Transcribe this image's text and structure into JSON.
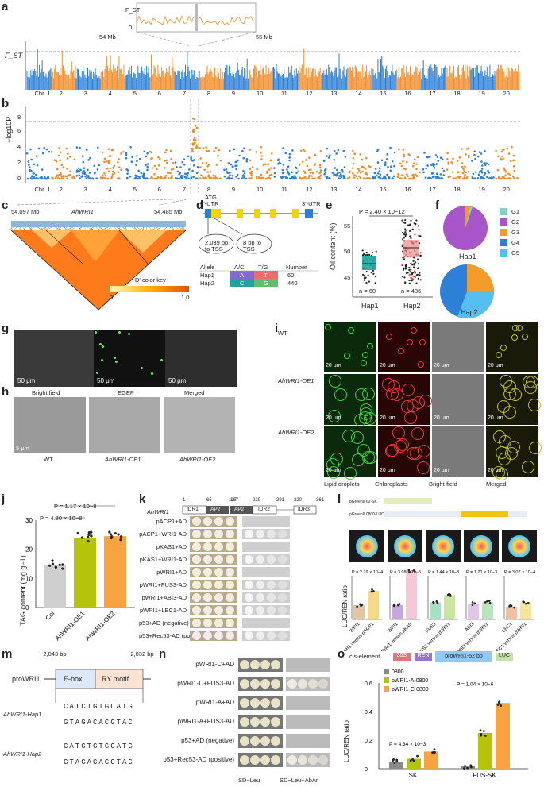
{
  "colors": {
    "orange": "#f28c28",
    "blue": "#2b7fd8",
    "teal": "#20a39e",
    "pink": "#e88a8a",
    "grey": "#bdbdbd",
    "lime": "#b5c40a",
    "lightorange": "#f6a340"
  },
  "panels": [
    "a",
    "b",
    "c",
    "d",
    "e",
    "f",
    "g",
    "h",
    "i",
    "j",
    "k",
    "l",
    "m",
    "n",
    "o"
  ],
  "a": {
    "ylabel": "F_ST",
    "zoom_start": "54 Mb",
    "zoom_end": "55 Mb",
    "zoom_ylabel": "F_ST",
    "zoom_ticks": [
      "0.2",
      "0"
    ],
    "chrs": [
      "Chr. 1",
      "2",
      "3",
      "4",
      "5",
      "6",
      "7",
      "8",
      "9",
      "10",
      "11",
      "12",
      "13",
      "14",
      "15",
      "16",
      "17",
      "18",
      "19",
      "20"
    ]
  },
  "b": {
    "ylabel": "−log10P",
    "yticks": [
      "8",
      "6",
      "4",
      "2",
      "0"
    ]
  },
  "c": {
    "left_pos": "54.097 Mb",
    "gene": "AhWRI1",
    "right_pos": "54.485 Mb",
    "key_title": "D′ color key",
    "key_min": "0",
    "key_max": "1.0"
  },
  "d": {
    "utr5": "5′-UTR",
    "utr3": "3′-UTR",
    "atg": "ATG",
    "tss1": "2,039 bp to TSS",
    "tss2": "8 bp to TSS",
    "table_header": [
      "Allele",
      "A/C",
      "T/G",
      "Number"
    ],
    "rows": [
      [
        "Hap1",
        "A",
        "T",
        "60"
      ],
      [
        "Hap2",
        "C",
        "G",
        "440"
      ]
    ]
  },
  "e": {
    "ylabel": "Oil content (%)",
    "pval": "P = 2.40 × 10−12",
    "yticks": [
      "55",
      "50",
      "45"
    ],
    "groups": [
      "Hap1",
      "Hap2"
    ],
    "ns": [
      "n = 60",
      "n = 436"
    ]
  },
  "f": {
    "legend": [
      "G1",
      "G2",
      "G3",
      "G4",
      "G5"
    ],
    "legend_colors": [
      "#7fd1c4",
      "#a855c9",
      "#f39c2a",
      "#2e7fd6",
      "#54bff0"
    ],
    "pie1": "Hap1",
    "pie2": "Hap2"
  },
  "g": {
    "labels": [
      "Bright field",
      "EGEP",
      "Merged"
    ],
    "scale": "50 μm"
  },
  "h": {
    "labels": [
      "WT",
      "AhWRI1-OE1",
      "AhWRI1-OE2"
    ],
    "scale": "5 μm"
  },
  "i": {
    "rows": [
      "WT",
      "AhWRI1-OE1",
      "AhWRI1-OE2"
    ],
    "cols": [
      "Lipid droplets",
      "Chloroplasts",
      "Bright-field",
      "Merged"
    ],
    "scale": "20 μm"
  },
  "j": {
    "ylabel": "TAG content (mg g−1)",
    "yticks": [
      "30",
      "20",
      "10",
      "0"
    ],
    "p1": "P = 1.17 × 10−8",
    "p2": "P = 4.80 × 10−8",
    "groups": [
      "Col",
      "AhWRI1-OE1",
      "AhWRI1-OE2"
    ]
  },
  "k": {
    "gene": "AhWRI1",
    "coords": [
      "1",
      "65",
      "137",
      "167",
      "229",
      "291",
      "320",
      "361"
    ],
    "domains": [
      "IDR1",
      "AP2",
      "AP2",
      "IDR2",
      "IDR3"
    ],
    "rows": [
      "pACP1+AD",
      "pACP1+WRI1-AD",
      "pKAS1+AD",
      "pKAS1+WRI1-AD",
      "pWRI1+AD",
      "pWRI1+FUS3-AD",
      "pWRI1+ABI3-AD",
      "pWRI1+LEC1-AD",
      "p53+AD (negative)",
      "p53+Rec53-AD (positive)"
    ]
  },
  "l": {
    "vec1": "pGreenII 62-SK",
    "vec2": "pGreenII 0800-LUC",
    "ylabel": "LUC/REN ratio",
    "pvals": [
      "P = 2.79 × 10−4",
      "P = 3.98 × 10−5",
      "P = 1.44 × 10−3",
      "P = 1.21 × 10−3",
      "P = 3.07 × 10−4"
    ],
    "groups": [
      "WRI1",
      "WRI1 versus pACP1",
      "WRI1",
      "WRI1 versus pKAS",
      "FUS3",
      "FUS3 versus pWRI1",
      "ABI3",
      "ABI3 versus pWRI1",
      "LEC1",
      "LEC1 versus pWRI1"
    ]
  },
  "m": {
    "promoter": "proWRI1",
    "left": "−2,043 bp",
    "right": "−2,032 bp",
    "box1": "E-box",
    "box2": "RY motif",
    "hap1": "AhWRI1-Hap1",
    "hap2": "AhWRI1-Hap2",
    "hap1_top": "CATCTGTGCATG",
    "hap1_bot": "GTAGACACGTAC",
    "hap2_top": "CATGTGTGCATG",
    "hap2_bot": "GTACACACGTAC"
  },
  "n": {
    "rows": [
      "pWRI1-C+AD",
      "pWRI1-C+FUS3-AD",
      "pWRI1-A+AD",
      "pWRI1-A+FUS3-AD",
      "p53+AD (negative)",
      "p53+Rec53-AD (positive)"
    ],
    "xlabels": [
      "SD−Leu",
      "SD−Leu+AbAr"
    ]
  },
  "o": {
    "cis": "cis-element",
    "c35s": "35S",
    "ren": "REN",
    "pro": "proWRI1-52 bp",
    "luc": "LUC",
    "legend": [
      "0800",
      "pWRI1-A-0800",
      "pWRI1-C-0800"
    ],
    "ylabel": "LUC/REN ratio",
    "yticks": [
      "0.6",
      "0.4",
      "0.2",
      "0"
    ],
    "p1": "P = 4.34 × 10−3",
    "p2": "P = 1.04 × 10−6",
    "groups": [
      "SK",
      "FUS-SK"
    ]
  },
  "chart_data": [
    {
      "type": "bar",
      "title": "",
      "ylabel": "TAG content (mg g−1)",
      "categories": [
        "Col",
        "AhWRI1-OE1",
        "AhWRI1-OE2"
      ],
      "values": [
        14.5,
        24,
        24.5
      ],
      "ylim": [
        0,
        30
      ]
    },
    {
      "type": "bar",
      "ylabel": "LUC/REN ratio",
      "categories": [
        "SK",
        "FUS-SK"
      ],
      "series": [
        {
          "name": "0800",
          "values": [
            0.05,
            0.02
          ]
        },
        {
          "name": "pWRI1-A-0800",
          "values": [
            0.07,
            0.25
          ]
        },
        {
          "name": "pWRI1-C-0800",
          "values": [
            0.12,
            0.46
          ]
        }
      ],
      "ylim": [
        0,
        0.6
      ]
    }
  ]
}
